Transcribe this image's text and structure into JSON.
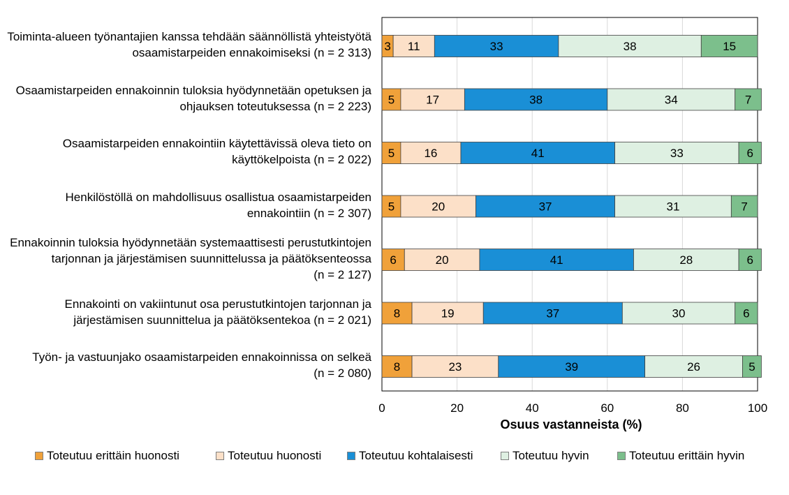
{
  "chart_data": {
    "type": "bar",
    "orientation": "horizontal",
    "stacked": true,
    "categories": [
      "Toiminta-alueen työnantajien kanssa tehdään säännöllistä yhteistyötä\nosaamistarpeiden ennakoimiseksi (n = 2 313)",
      "Osaamistarpeiden ennakoinnin tuloksia hyödynnetään opetuksen ja\nohjauksen toteutuksessa (n = 2 223)",
      "Osaamistarpeiden ennakointiin käytettävissä oleva tieto on\nkäyttökelpoista (n = 2 022)",
      "Henkilöstöllä on mahdollisuus osallistua osaamistarpeiden\nennakointiin (n = 2 307)",
      "Ennakoinnin tuloksia hyödynnetään systemaattisesti perustutkintojen\ntarjonnan ja järjestämisen suunnittelussa ja päätöksenteossa\n(n = 2 127)",
      "Ennakointi on vakiintunut osa perustutkintojen tarjonnan ja\njärjestämisen suunnittelua ja päätöksentekoa (n = 2 021)",
      "Työn- ja vastuunjako osaamistarpeiden ennakoinnissa on selkeä\n(n = 2 080)"
    ],
    "series": [
      {
        "name": "Toteutuu erittäin huonosti",
        "color": "#f0a13a",
        "values": [
          3,
          5,
          5,
          5,
          6,
          8,
          8
        ]
      },
      {
        "name": "Toteutuu huonosti",
        "color": "#fce0c8",
        "values": [
          11,
          17,
          16,
          20,
          20,
          19,
          23
        ]
      },
      {
        "name": "Toteutuu kohtalaisesti",
        "color": "#1a8fd6",
        "values": [
          33,
          38,
          41,
          37,
          41,
          37,
          39
        ]
      },
      {
        "name": "Toteutuu hyvin",
        "color": "#def0e2",
        "values": [
          38,
          34,
          33,
          31,
          28,
          30,
          26
        ]
      },
      {
        "name": "Toteutuu erittäin hyvin",
        "color": "#7cbf8c",
        "values": [
          15,
          7,
          6,
          7,
          6,
          6,
          5
        ]
      }
    ],
    "xlabel": "Osuus vastanneista (%)",
    "xlim": [
      0,
      100
    ],
    "xticks": [
      "0",
      "20",
      "40",
      "60",
      "80",
      "100"
    ],
    "grid": true,
    "legend_position": "bottom"
  }
}
